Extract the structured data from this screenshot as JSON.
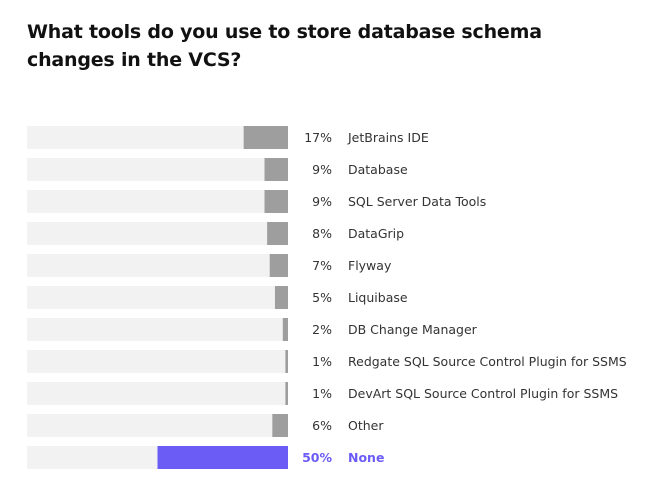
{
  "chart_data": {
    "type": "bar",
    "orientation": "horizontal",
    "title": "What tools do you use to store database schema changes in the VCS?",
    "categories": [
      "JetBrains IDE",
      "Database",
      "SQL Server Data Tools",
      "DataGrip",
      "Flyway",
      "Liquibase",
      "DB Change Manager",
      "Redgate SQL Source Control Plugin for SSMS",
      "DevArt SQL Source Control Plugin for SSMS",
      "Other",
      "None"
    ],
    "values": [
      17,
      9,
      9,
      8,
      7,
      5,
      2,
      1,
      1,
      6,
      50
    ],
    "value_labels": [
      "17%",
      "9%",
      "9%",
      "8%",
      "7%",
      "5%",
      "2%",
      "1%",
      "1%",
      "6%",
      "50%"
    ],
    "highlighted_index": 10,
    "xlim": [
      0,
      100
    ],
    "xlabel": "",
    "ylabel": "",
    "grid": false,
    "legend": "none",
    "colors": {
      "track": "#f2f2f2",
      "bar": "#9e9e9e",
      "highlight": "#6b5cf6",
      "text": "#333333"
    }
  }
}
